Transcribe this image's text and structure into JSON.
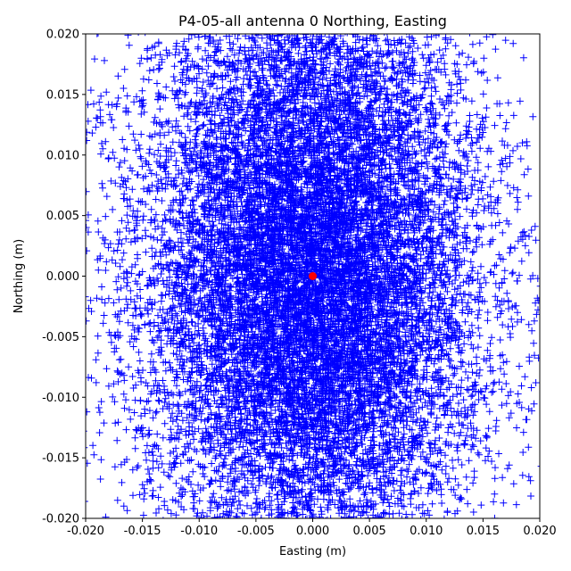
{
  "chart_data": {
    "type": "scatter",
    "title": "P4-05-all antenna 0 Northing, Easting",
    "xlabel": "Easting (m)",
    "ylabel": "Northing (m)",
    "xlim": [
      -0.02,
      0.02
    ],
    "ylim": [
      -0.02,
      0.02
    ],
    "x_ticks": [
      "-0.020",
      "-0.015",
      "-0.010",
      "-0.005",
      "0.000",
      "0.005",
      "0.010",
      "0.015",
      "0.020"
    ],
    "y_ticks": [
      "-0.020",
      "-0.015",
      "-0.010",
      "-0.005",
      "0.000",
      "0.005",
      "0.010",
      "0.015",
      "0.020"
    ],
    "grid": false,
    "series": [
      {
        "marker": "plus",
        "color": "#0000ff",
        "distribution": {
          "mean_easting": 0.0,
          "mean_northing": 0.0,
          "std_easting": 0.0075,
          "std_northing": 0.0125
        }
      },
      {
        "marker": "circle",
        "color": "#ff0000",
        "points": [
          {
            "x": 0.0,
            "y": 0.0
          }
        ]
      }
    ]
  }
}
